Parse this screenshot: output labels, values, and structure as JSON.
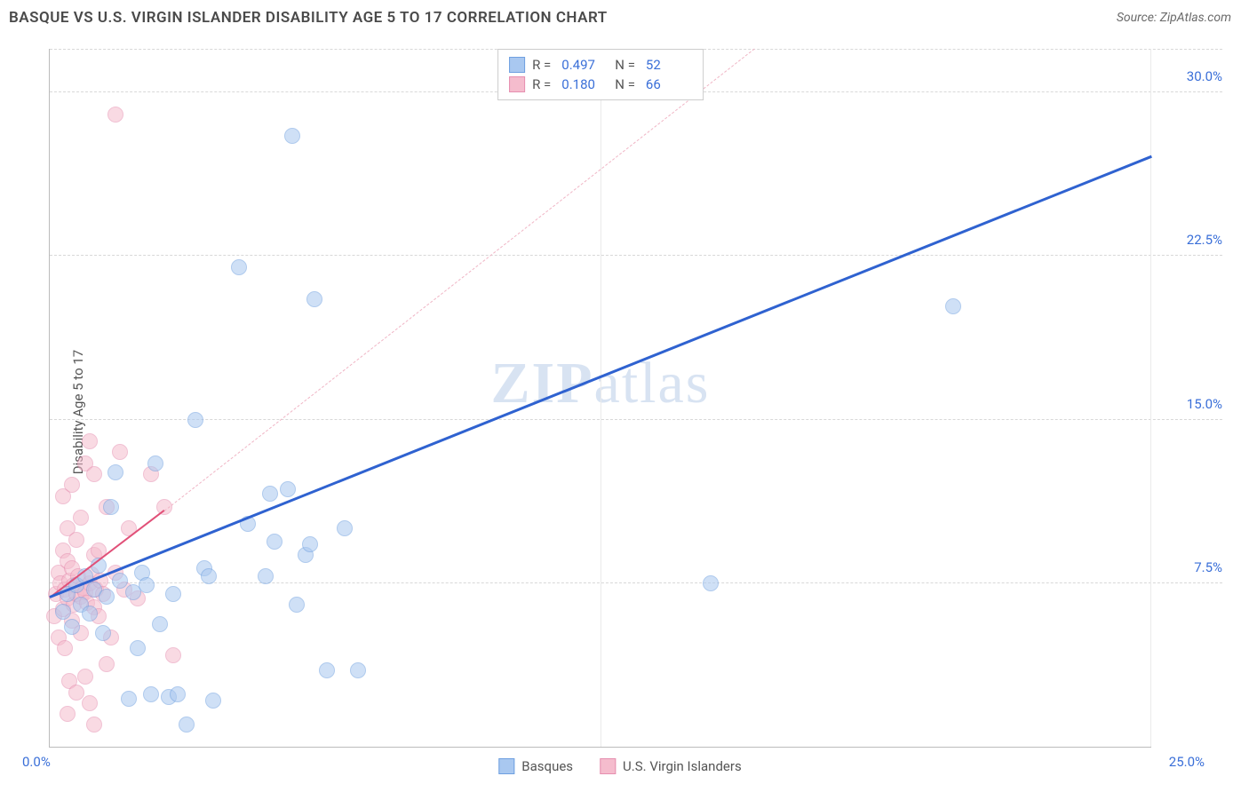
{
  "title": "BASQUE VS U.S. VIRGIN ISLANDER DISABILITY AGE 5 TO 17 CORRELATION CHART",
  "source": "Source: ZipAtlas.com",
  "ylabel": "Disability Age 5 to 17",
  "watermark": "ZIPatlas",
  "chart": {
    "type": "scatter",
    "xlim": [
      0,
      25
    ],
    "ylim": [
      0,
      32
    ],
    "xticks_labels": [
      "0.0%",
      "25.0%"
    ],
    "yticks": [
      7.5,
      15.0,
      22.5,
      30.0
    ],
    "ytick_labels": [
      "7.5%",
      "15.0%",
      "22.5%",
      "30.0%"
    ],
    "x_gridlines_at": [
      12.5
    ],
    "background_color": "#ffffff",
    "grid_color": "#d8d8d8",
    "axis_color": "#bbbbbb",
    "marker_radius": 9,
    "marker_opacity": 0.55,
    "series": [
      {
        "name": "Basques",
        "color_fill": "#a9c8f0",
        "color_stroke": "#6fa0e0",
        "trend": {
          "x1": 0,
          "y1": 6.8,
          "x2": 25,
          "y2": 27.0,
          "stroke": "#2f62d0",
          "width": 3,
          "dash": false
        },
        "points": [
          [
            0.3,
            6.2
          ],
          [
            0.4,
            7.0
          ],
          [
            0.5,
            5.5
          ],
          [
            0.6,
            7.4
          ],
          [
            0.7,
            6.5
          ],
          [
            0.8,
            7.8
          ],
          [
            0.9,
            6.1
          ],
          [
            1.0,
            7.2
          ],
          [
            1.1,
            8.3
          ],
          [
            1.2,
            5.2
          ],
          [
            1.3,
            6.9
          ],
          [
            1.4,
            11.0
          ],
          [
            1.5,
            12.6
          ],
          [
            1.6,
            7.6
          ],
          [
            1.8,
            2.2
          ],
          [
            1.9,
            7.1
          ],
          [
            2.0,
            4.5
          ],
          [
            2.1,
            8.0
          ],
          [
            2.2,
            7.4
          ],
          [
            2.3,
            2.4
          ],
          [
            2.4,
            13.0
          ],
          [
            2.5,
            5.6
          ],
          [
            2.7,
            2.3
          ],
          [
            2.8,
            7.0
          ],
          [
            2.9,
            2.4
          ],
          [
            3.1,
            1.0
          ],
          [
            3.3,
            15.0
          ],
          [
            3.5,
            8.2
          ],
          [
            3.6,
            7.8
          ],
          [
            3.7,
            2.1
          ],
          [
            4.3,
            22.0
          ],
          [
            4.5,
            10.2
          ],
          [
            4.9,
            7.8
          ],
          [
            5.0,
            11.6
          ],
          [
            5.1,
            9.4
          ],
          [
            5.4,
            11.8
          ],
          [
            5.5,
            28.0
          ],
          [
            5.6,
            6.5
          ],
          [
            5.8,
            8.8
          ],
          [
            5.9,
            9.3
          ],
          [
            6.0,
            20.5
          ],
          [
            6.3,
            3.5
          ],
          [
            6.7,
            10.0
          ],
          [
            7.0,
            3.5
          ],
          [
            15.0,
            7.5
          ],
          [
            20.5,
            20.2
          ]
        ]
      },
      {
        "name": "U.S. Virgin Islanders",
        "color_fill": "#f5bccd",
        "color_stroke": "#e68fb0",
        "trend_solid": {
          "x1": 0,
          "y1": 6.8,
          "x2": 2.6,
          "y2": 10.8,
          "stroke": "#e15078",
          "width": 2.5
        },
        "trend_dash": {
          "x1": 2.6,
          "y1": 10.8,
          "x2": 16,
          "y2": 32,
          "stroke": "#f0b5c5",
          "width": 1.5
        },
        "points": [
          [
            0.1,
            6.0
          ],
          [
            0.15,
            7.0
          ],
          [
            0.2,
            5.0
          ],
          [
            0.2,
            8.0
          ],
          [
            0.25,
            7.5
          ],
          [
            0.3,
            6.3
          ],
          [
            0.3,
            9.0
          ],
          [
            0.3,
            11.5
          ],
          [
            0.35,
            4.5
          ],
          [
            0.35,
            7.2
          ],
          [
            0.4,
            1.5
          ],
          [
            0.4,
            6.8
          ],
          [
            0.4,
            8.5
          ],
          [
            0.4,
            10.0
          ],
          [
            0.45,
            3.0
          ],
          [
            0.45,
            7.6
          ],
          [
            0.5,
            5.8
          ],
          [
            0.5,
            8.2
          ],
          [
            0.5,
            12.0
          ],
          [
            0.55,
            6.5
          ],
          [
            0.55,
            7.4
          ],
          [
            0.6,
            2.5
          ],
          [
            0.6,
            7.0
          ],
          [
            0.6,
            9.5
          ],
          [
            0.65,
            7.8
          ],
          [
            0.7,
            5.2
          ],
          [
            0.7,
            6.9
          ],
          [
            0.7,
            10.5
          ],
          [
            0.75,
            7.3
          ],
          [
            0.8,
            3.2
          ],
          [
            0.8,
            7.1
          ],
          [
            0.8,
            13.0
          ],
          [
            0.85,
            6.6
          ],
          [
            0.9,
            2.0
          ],
          [
            0.9,
            7.5
          ],
          [
            0.9,
            14.0
          ],
          [
            0.95,
            7.9
          ],
          [
            1.0,
            1.0
          ],
          [
            1.0,
            6.4
          ],
          [
            1.0,
            8.8
          ],
          [
            1.0,
            12.5
          ],
          [
            1.05,
            7.2
          ],
          [
            1.1,
            6.0
          ],
          [
            1.1,
            9.0
          ],
          [
            1.15,
            7.6
          ],
          [
            1.2,
            7.0
          ],
          [
            1.3,
            3.8
          ],
          [
            1.3,
            11.0
          ],
          [
            1.4,
            5.0
          ],
          [
            1.5,
            29.0
          ],
          [
            1.5,
            8.0
          ],
          [
            1.6,
            13.5
          ],
          [
            1.7,
            7.2
          ],
          [
            1.8,
            10.0
          ],
          [
            2.0,
            6.8
          ],
          [
            2.3,
            12.5
          ],
          [
            2.6,
            11.0
          ],
          [
            2.8,
            4.2
          ]
        ]
      }
    ]
  },
  "legend_top": {
    "rows": [
      {
        "swatch_fill": "#a9c8f0",
        "swatch_stroke": "#6fa0e0",
        "r_label": "R =",
        "r_value": "0.497",
        "n_label": "N =",
        "n_value": "52"
      },
      {
        "swatch_fill": "#f5bccd",
        "swatch_stroke": "#e68fb0",
        "r_label": "R =",
        "r_value": "0.180",
        "n_label": "N =",
        "n_value": "66"
      }
    ]
  },
  "legend_bottom": {
    "items": [
      {
        "swatch_fill": "#a9c8f0",
        "swatch_stroke": "#6fa0e0",
        "label": "Basques"
      },
      {
        "swatch_fill": "#f5bccd",
        "swatch_stroke": "#e68fb0",
        "label": "U.S. Virgin Islanders"
      }
    ]
  }
}
